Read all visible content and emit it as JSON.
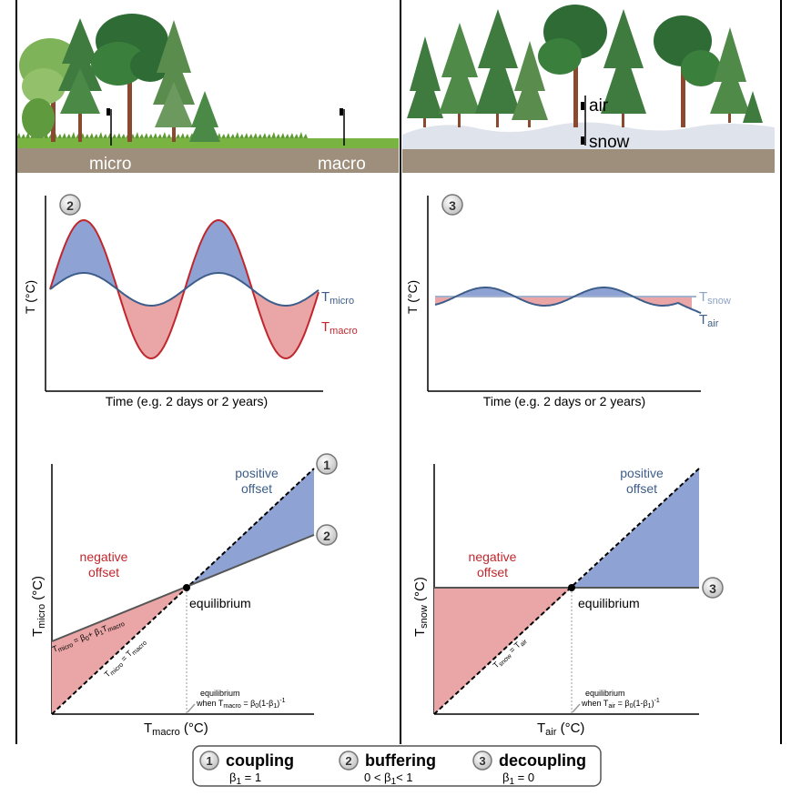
{
  "colors": {
    "blue_fill": "#8ea2d4",
    "red_fill": "#eaa5a6",
    "blue_line": "#3d5d8a",
    "red_line": "#c0272d",
    "ground": "#9e8f7c",
    "grass": "#6fa83a",
    "snow": "#dfe3ec",
    "tree_dark": "#2e6b35",
    "tree_green": "#5f9a3f",
    "trunk": "#8a4a2f"
  },
  "scene": {
    "left_label_micro": "micro",
    "left_label_macro": "macro",
    "right_label_air": "air",
    "right_label_snow": "snow"
  },
  "panel2": {
    "badge": "2",
    "ylabel": "T (°C)",
    "xlabel": "Time (e.g. 2 days or 2 years)",
    "line_micro_main": "T",
    "line_micro_sub": "micro",
    "line_macro_main": "T",
    "line_macro_sub": "macro"
  },
  "panel3": {
    "badge": "3",
    "ylabel": "T (°C)",
    "xlabel": "Time (e.g. 2 days or 2 years)",
    "line_snow_main": "T",
    "line_snow_sub": "snow",
    "line_air_main": "T",
    "line_air_sub": "air"
  },
  "scatter_left": {
    "ylabel_main": "T",
    "ylabel_sub": "micro",
    "ylabel_unit": " (°C)",
    "xlabel_main": "T",
    "xlabel_sub": "macro",
    "xlabel_unit": " (°C)",
    "positive_1": "positive",
    "positive_2": "offset",
    "negative_1": "negative",
    "negative_2": "offset",
    "equilibrium": "equilibrium",
    "badge_1": "1",
    "badge_2": "2",
    "eq_line": "T",
    "eq_line_sub1": "micro",
    "eq_line_mid": " = β",
    "eq_line_sub2": "0",
    "eq_line_mid2": "+ β",
    "eq_line_sub3": "1",
    "eq_line_end": "T",
    "eq_line_sub4": "macro",
    "diag_main1": "T",
    "diag_sub1": "micro",
    "diag_mid": " = T",
    "diag_sub2": "macro",
    "note_1": "equilibrium",
    "note_2_a": "when T",
    "note_2_sub": "macro",
    "note_2_b": " = β",
    "note_2_sub2": "0",
    "note_2_c": "(1-β",
    "note_2_sub3": "1",
    "note_2_d": ")",
    "note_2_sup": "-1"
  },
  "scatter_right": {
    "ylabel_main": "T",
    "ylabel_sub": "snow",
    "ylabel_unit": " (°C)",
    "xlabel_main": "T",
    "xlabel_sub": "air",
    "xlabel_unit": " (°C)",
    "positive_1": "positive",
    "positive_2": "offset",
    "negative_1": "negative",
    "negative_2": "offset",
    "equilibrium": "equilibrium",
    "badge_3": "3",
    "diag_main1": "T",
    "diag_sub1": "snow",
    "diag_mid": " = T",
    "diag_sub2": "air",
    "note_1": "equilibrium",
    "note_2_a": "when T",
    "note_2_sub": "air",
    "note_2_b": " = β",
    "note_2_sub2": "0",
    "note_2_c": "(1-β",
    "note_2_sub3": "1",
    "note_2_d": ")",
    "note_2_sup": "-1"
  },
  "legend": [
    {
      "badge": "1",
      "title": "coupling",
      "formula_a": "β",
      "formula_sub": "1",
      "formula_b": " = 1"
    },
    {
      "badge": "2",
      "title": "buffering",
      "formula_a": "0 < β",
      "formula_sub": "1",
      "formula_b": "< 1"
    },
    {
      "badge": "3",
      "title": "decoupling",
      "formula_a": "β",
      "formula_sub": "1",
      "formula_b": " = 0"
    }
  ]
}
